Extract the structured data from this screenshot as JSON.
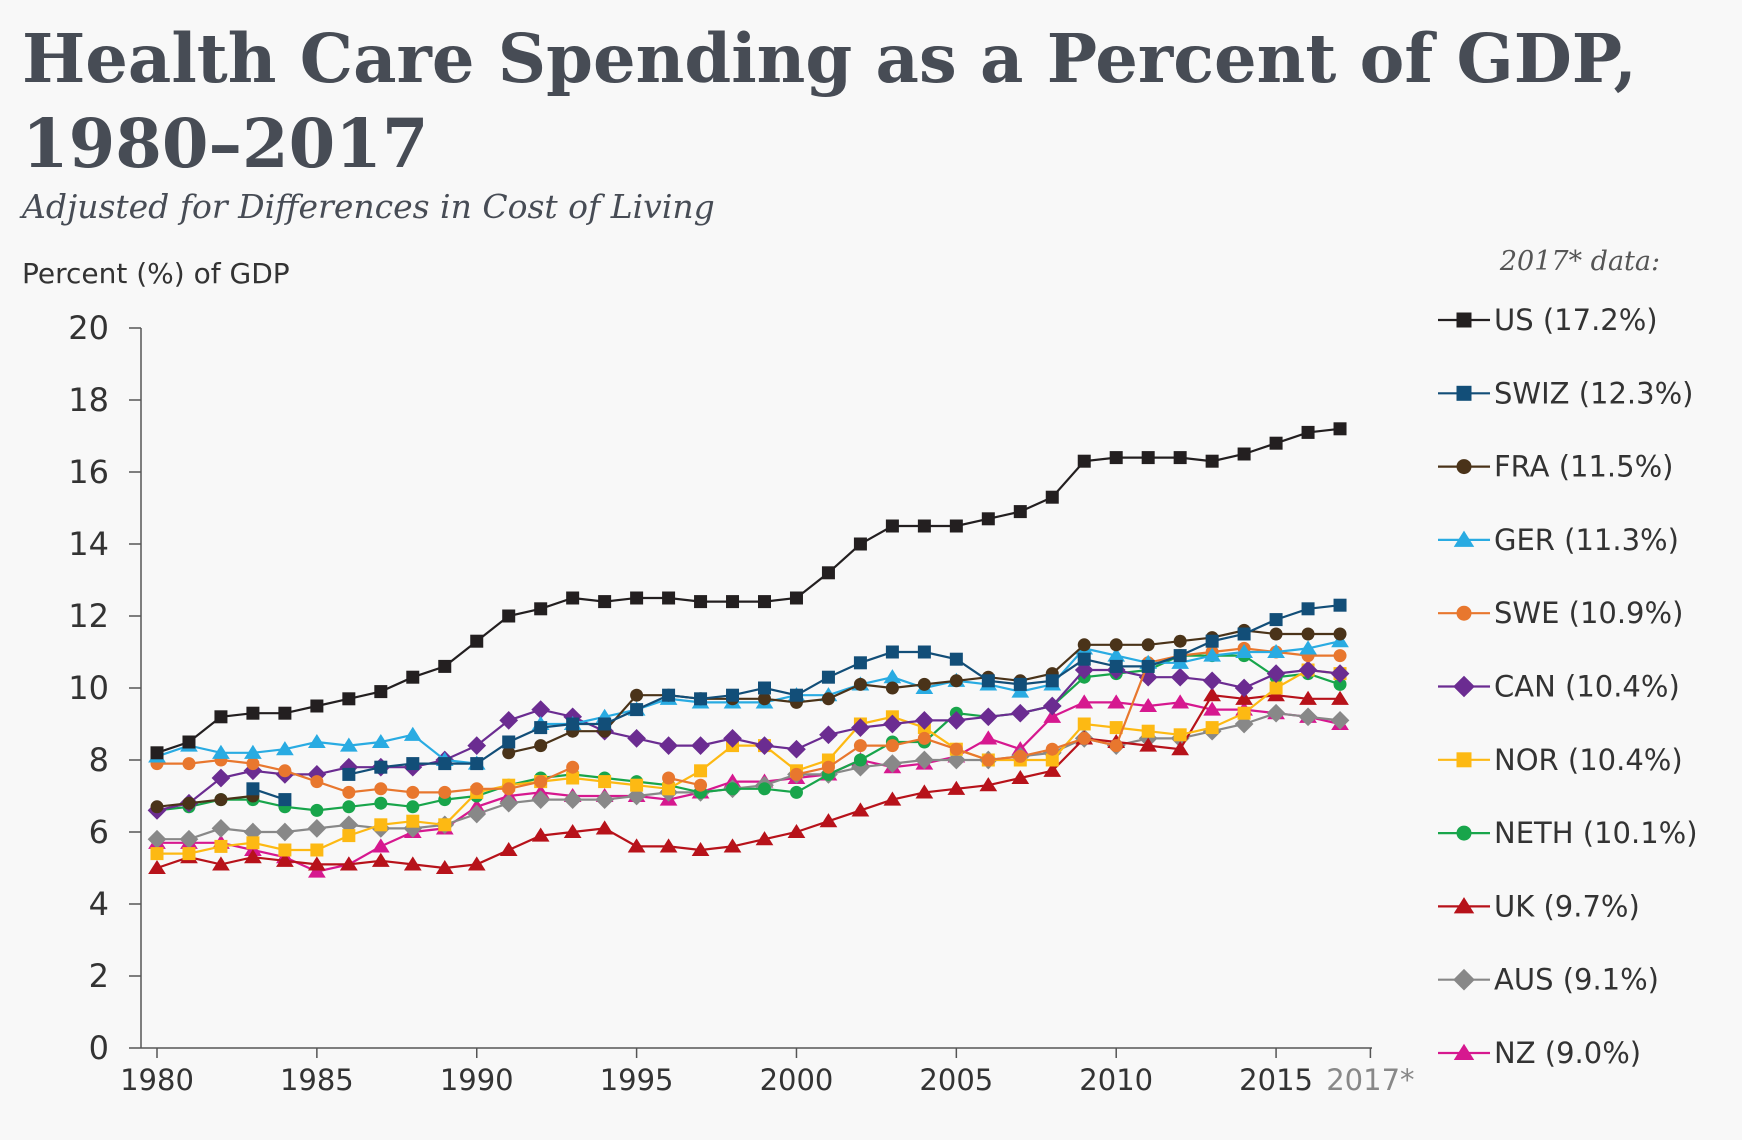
{
  "chart_data": {
    "type": "line",
    "title": "Health Care Spending as a Percent of GDP,",
    "title_line2": "1980–2017",
    "subtitle": "Adjusted for Differences in Cost of Living",
    "ylabel": "Percent (%) of GDP",
    "xlabel": "",
    "ylim": [
      0,
      20
    ],
    "xlim": [
      1980,
      2018
    ],
    "yticks": [
      "0",
      "2",
      "4",
      "6",
      "8",
      "10",
      "12",
      "14",
      "16",
      "18",
      "20"
    ],
    "xticks": [
      {
        "label": "1980",
        "x": 1980
      },
      {
        "label": "1985",
        "x": 1985
      },
      {
        "label": "1990",
        "x": 1990
      },
      {
        "label": "1995",
        "x": 1995
      },
      {
        "label": "2000",
        "x": 2000
      },
      {
        "label": "2005",
        "x": 2005
      },
      {
        "label": "2010",
        "x": 2010
      },
      {
        "label": "2015",
        "x": 2015
      },
      {
        "label": "2017*",
        "x": 2017.95
      }
    ],
    "legend_title": "2017* data:",
    "legend_placement": "right",
    "grid": false,
    "x": [
      1980,
      1981,
      1982,
      1983,
      1984,
      1985,
      1986,
      1987,
      1988,
      1989,
      1990,
      1991,
      1992,
      1993,
      1994,
      1995,
      1996,
      1997,
      1998,
      1999,
      2000,
      2001,
      2002,
      2003,
      2004,
      2005,
      2006,
      2007,
      2008,
      2009,
      2010,
      2011,
      2012,
      2013,
      2014,
      2015,
      2016,
      2017
    ],
    "series": [
      {
        "name": "US (17.2%)",
        "color": "#231f20",
        "marker": "square",
        "values": [
          8.2,
          8.5,
          9.2,
          9.3,
          9.3,
          9.5,
          9.7,
          9.9,
          10.3,
          10.6,
          11.3,
          12.0,
          12.2,
          12.5,
          12.4,
          12.5,
          12.5,
          12.4,
          12.4,
          12.4,
          12.5,
          13.2,
          14.0,
          14.5,
          14.5,
          14.5,
          14.7,
          14.9,
          15.3,
          16.3,
          16.4,
          16.4,
          16.4,
          16.3,
          16.5,
          16.8,
          17.1,
          17.2
        ]
      },
      {
        "name": "SWIZ (12.3%)",
        "color": "#124e78",
        "marker": "square",
        "values": [
          null,
          null,
          null,
          7.2,
          6.9,
          null,
          7.6,
          7.8,
          7.9,
          7.9,
          7.9,
          8.5,
          8.9,
          9.0,
          9.0,
          9.4,
          9.8,
          9.7,
          9.8,
          10.0,
          9.8,
          10.3,
          10.7,
          11.0,
          11.0,
          10.8,
          10.2,
          10.1,
          10.2,
          10.8,
          10.6,
          10.6,
          10.9,
          11.3,
          11.5,
          11.9,
          12.2,
          12.3
        ]
      },
      {
        "name": "FRA (11.5%)",
        "color": "#4a3319",
        "marker": "circle",
        "values": [
          6.7,
          6.8,
          6.9,
          7.0,
          null,
          null,
          null,
          null,
          null,
          null,
          null,
          8.2,
          8.4,
          8.8,
          8.8,
          9.8,
          9.8,
          9.7,
          9.7,
          9.7,
          9.6,
          9.7,
          10.1,
          10.0,
          10.1,
          10.2,
          10.3,
          10.2,
          10.4,
          11.2,
          11.2,
          11.2,
          11.3,
          11.4,
          11.6,
          11.5,
          11.5,
          11.5
        ]
      },
      {
        "name": "GER (11.3%)",
        "color": "#29abe2",
        "marker": "triangle",
        "values": [
          8.1,
          8.4,
          8.2,
          8.2,
          8.3,
          8.5,
          8.4,
          8.5,
          8.7,
          8.0,
          7.9,
          null,
          9.0,
          9.0,
          9.2,
          9.4,
          9.7,
          9.6,
          9.6,
          9.6,
          9.8,
          9.8,
          10.1,
          10.3,
          10.0,
          10.2,
          10.1,
          9.9,
          10.1,
          11.1,
          10.9,
          10.7,
          10.7,
          10.9,
          11.0,
          11.0,
          11.1,
          11.3
        ]
      },
      {
        "name": "SWE (10.9%)",
        "color": "#e8772e",
        "marker": "circle",
        "values": [
          7.9,
          7.9,
          8.0,
          7.9,
          7.7,
          7.4,
          7.1,
          7.2,
          7.1,
          7.1,
          7.2,
          7.2,
          7.4,
          7.8,
          null,
          null,
          7.5,
          7.3,
          null,
          null,
          7.6,
          7.8,
          8.4,
          8.4,
          8.6,
          8.3,
          8.0,
          8.1,
          8.3,
          8.6,
          8.4,
          10.7,
          10.9,
          11.0,
          11.1,
          11.0,
          10.9,
          10.9
        ]
      },
      {
        "name": "CAN (10.4%)",
        "color": "#6b2c91",
        "marker": "diamond",
        "values": [
          6.6,
          6.8,
          7.5,
          7.7,
          7.6,
          7.6,
          7.8,
          7.8,
          7.8,
          8.0,
          8.4,
          9.1,
          9.4,
          9.2,
          8.8,
          8.6,
          8.4,
          8.4,
          8.6,
          8.4,
          8.3,
          8.7,
          8.9,
          9.0,
          9.1,
          9.1,
          9.2,
          9.3,
          9.5,
          10.5,
          10.5,
          10.3,
          10.3,
          10.2,
          10.0,
          10.4,
          10.5,
          10.4
        ]
      },
      {
        "name": "NOR (10.4%)",
        "color": "#fdb913",
        "marker": "square",
        "values": [
          5.4,
          5.4,
          5.6,
          5.7,
          5.5,
          5.5,
          5.9,
          6.2,
          6.3,
          6.2,
          7.1,
          7.3,
          7.4,
          7.5,
          7.4,
          7.3,
          7.2,
          7.7,
          8.4,
          8.4,
          7.7,
          8.0,
          9.0,
          9.2,
          8.9,
          8.3,
          8.0,
          8.0,
          8.0,
          9.0,
          8.9,
          8.8,
          8.7,
          8.9,
          9.3,
          10.0,
          10.5,
          10.4
        ]
      },
      {
        "name": "NETH (10.1%)",
        "color": "#18a54b",
        "marker": "circle",
        "values": [
          6.6,
          6.7,
          6.9,
          6.9,
          6.7,
          6.6,
          6.7,
          6.8,
          6.7,
          6.9,
          7.0,
          7.3,
          7.5,
          7.6,
          7.5,
          7.4,
          7.3,
          7.1,
          7.2,
          7.2,
          7.1,
          7.6,
          8.0,
          8.5,
          8.5,
          9.3,
          9.2,
          9.3,
          9.5,
          10.3,
          10.4,
          10.5,
          10.9,
          10.9,
          10.9,
          10.3,
          10.4,
          10.1
        ]
      },
      {
        "name": "UK (9.7%)",
        "color": "#b7121a",
        "marker": "triangle",
        "values": [
          5.0,
          5.3,
          5.1,
          5.3,
          5.2,
          5.1,
          5.1,
          5.2,
          5.1,
          5.0,
          5.1,
          5.5,
          5.9,
          6.0,
          6.1,
          5.6,
          5.6,
          5.5,
          5.6,
          5.8,
          6.0,
          6.3,
          6.6,
          6.9,
          7.1,
          7.2,
          7.3,
          7.5,
          7.7,
          8.6,
          8.5,
          8.4,
          8.3,
          9.8,
          9.7,
          9.8,
          9.7,
          9.7
        ]
      },
      {
        "name": "AUS (9.1%)",
        "color": "#888888",
        "marker": "diamond",
        "values": [
          5.8,
          5.8,
          6.1,
          6.0,
          6.0,
          6.1,
          6.2,
          6.1,
          6.1,
          6.2,
          6.5,
          6.8,
          6.9,
          6.9,
          6.9,
          7.0,
          7.1,
          7.1,
          7.2,
          7.3,
          7.6,
          7.6,
          7.8,
          7.9,
          8.0,
          8.0,
          8.0,
          8.1,
          8.2,
          8.6,
          8.4,
          8.6,
          8.6,
          8.8,
          9.0,
          9.3,
          9.2,
          9.1
        ]
      },
      {
        "name": "NZ (9.0%)",
        "color": "#d6188f",
        "marker": "triangle",
        "values": [
          5.7,
          5.7,
          5.7,
          5.5,
          5.3,
          4.9,
          5.1,
          5.6,
          6.0,
          6.1,
          6.7,
          7.0,
          7.1,
          7.0,
          7.0,
          7.0,
          6.9,
          7.1,
          7.4,
          7.4,
          7.5,
          7.6,
          8.0,
          7.8,
          7.9,
          8.1,
          8.6,
          8.3,
          9.2,
          9.6,
          9.6,
          9.5,
          9.6,
          9.4,
          9.4,
          9.3,
          9.2,
          9.0
        ]
      }
    ]
  }
}
